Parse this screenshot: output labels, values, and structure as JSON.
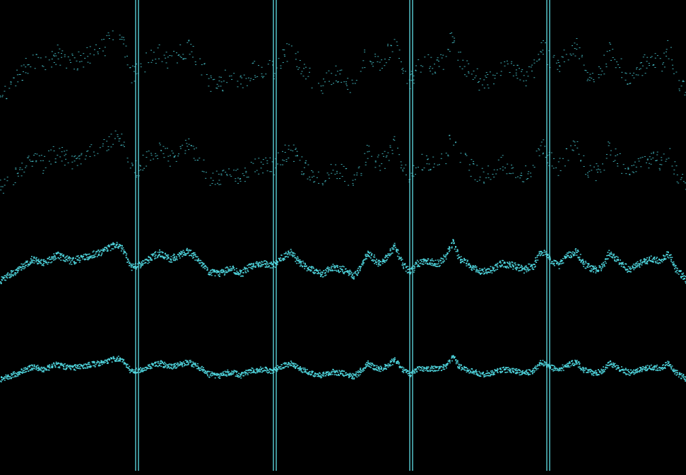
{
  "display": {
    "background_color": "#000000",
    "trace_color": "#4fd6de",
    "marker_color": "#5fdfe6"
  },
  "traces": [
    {
      "id": "trace-1",
      "style": "sparse-dots",
      "amplitude": 1.0
    },
    {
      "id": "trace-2",
      "style": "sparse-dots",
      "amplitude": 0.85
    },
    {
      "id": "trace-3",
      "style": "dense-band",
      "amplitude": 0.6
    },
    {
      "id": "trace-4",
      "style": "dense-band",
      "amplitude": 0.35
    }
  ],
  "markers": [
    {
      "id": "marker-1"
    },
    {
      "id": "marker-2"
    },
    {
      "id": "marker-3"
    },
    {
      "id": "marker-4"
    }
  ]
}
